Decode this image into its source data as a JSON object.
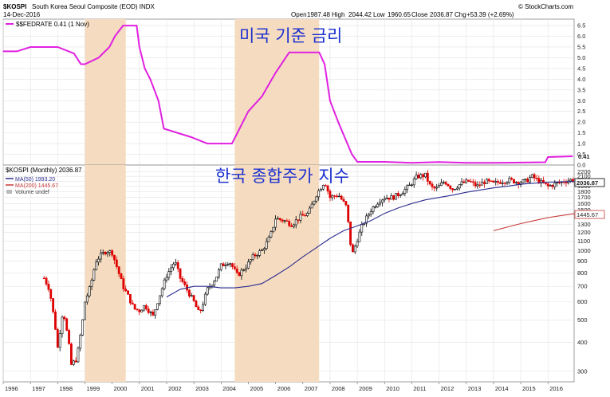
{
  "header": {
    "symbol": "$KOSPI",
    "name": "South Korea Seoul Composite (EOD) INDX",
    "date": "14-Dec-2016",
    "open_label": "Open",
    "open": "1987.48",
    "high_label": "High",
    "high": "2044.42",
    "low_label": "Low",
    "low": "1960.65",
    "close_label": "Close",
    "close": "2036.87",
    "chg_label": "Chg",
    "chg": "+53.39 (+2.69%)",
    "watermark": "© StockCharts.com"
  },
  "colors": {
    "fed_line": "#e020e0",
    "candle_up": "#000000",
    "candle_down": "#dd0000",
    "ma50": "#2b2b8f",
    "ma200": "#c83a3a",
    "shade": "#f5dcc0",
    "annotation": "#1a2fd0",
    "grid": "#e3e3e3"
  },
  "top_panel": {
    "legend": "$$FEDRATE 0.41 (1 Nov)",
    "annotation": "미국 기준 금리",
    "last_value_label": "0.41",
    "y_ticks": [
      "0.0",
      "0.5",
      "1.0",
      "1.5",
      "2.0",
      "2.5",
      "3.0",
      "3.5",
      "4.0",
      "4.5",
      "5.0",
      "5.5",
      "6.0",
      "6.5"
    ]
  },
  "bottom_panel": {
    "legend_1": "$KOSPI (Monthly) 2036.87",
    "legend_2": "MA(50) 1993.20",
    "legend_3": "MA(200) 1445.67",
    "legend_4": "Volume undef",
    "annotation": "한국 종합주가 지수",
    "last_value_label": "2036.87",
    "ma200_label": "1445.67",
    "y_ticks": [
      "300",
      "400",
      "500",
      "600",
      "700",
      "800",
      "900",
      "1000",
      "1100",
      "1200",
      "1300",
      "1400",
      "1500",
      "1600",
      "1700",
      "1800",
      "1900",
      "2000",
      "2100",
      "2200"
    ]
  },
  "x_labels": [
    "1996",
    "1997",
    "1998",
    "1999",
    "2000",
    "2001",
    "2002",
    "2003",
    "2004",
    "2005",
    "2006",
    "2007",
    "2008",
    "2009",
    "2010",
    "2011",
    "2012",
    "2013",
    "2014",
    "2015",
    "2016"
  ],
  "chart_data": [
    {
      "type": "line",
      "title": "$$FEDRATE 0.41 (1 Nov)",
      "series": [
        {
          "name": "$$FEDRATE",
          "x": [
            1996.0,
            1996.5,
            1997.0,
            1997.5,
            1998.0,
            1998.6,
            1998.85,
            1999.0,
            1999.5,
            1999.9,
            2000.1,
            2000.4,
            2000.9,
            2001.0,
            2001.2,
            2001.4,
            2001.7,
            2001.9,
            2002.9,
            2003.5,
            2004.4,
            2004.6,
            2005.0,
            2005.5,
            2006.0,
            2006.5,
            2007.6,
            2007.8,
            2008.0,
            2008.3,
            2008.8,
            2009.0,
            2010.0,
            2011.0,
            2012.0,
            2013.0,
            2014.0,
            2015.9,
            2016.0,
            2016.9
          ],
          "y": [
            5.3,
            5.3,
            5.5,
            5.5,
            5.5,
            5.2,
            4.7,
            4.7,
            5.0,
            5.5,
            6.0,
            6.5,
            6.5,
            5.5,
            4.5,
            4.0,
            3.0,
            1.7,
            1.3,
            1.0,
            1.0,
            1.5,
            2.5,
            3.2,
            4.3,
            5.25,
            5.25,
            4.7,
            3.0,
            2.0,
            0.5,
            0.15,
            0.15,
            0.1,
            0.14,
            0.1,
            0.1,
            0.13,
            0.37,
            0.41
          ]
        }
      ],
      "ylim": [
        0,
        6.8
      ],
      "shaded_periods": [
        [
          1999.0,
          2000.5
        ],
        [
          2004.5,
          2007.6
        ]
      ]
    },
    {
      "type": "line",
      "title": "$KOSPI (Monthly) 2036.87",
      "y_scale": "log",
      "ylim": [
        270,
        2350
      ],
      "series": [
        {
          "name": "$KOSPI (Monthly) 2036.87",
          "x": [
            1997.5,
            1997.7,
            1997.9,
            1998.0,
            1998.2,
            1998.4,
            1998.5,
            1998.7,
            1998.9,
            1999.0,
            1999.2,
            1999.4,
            1999.6,
            1999.8,
            2000.0,
            2000.2,
            2000.4,
            2000.6,
            2000.8,
            2001.0,
            2001.2,
            2001.5,
            2001.7,
            2002.0,
            2002.3,
            2002.5,
            2002.8,
            2003.0,
            2003.2,
            2003.5,
            2003.8,
            2004.0,
            2004.3,
            2004.6,
            2004.9,
            2005.2,
            2005.5,
            2005.8,
            2006.0,
            2006.3,
            2006.6,
            2006.9,
            2007.2,
            2007.5,
            2007.8,
            2008.0,
            2008.3,
            2008.6,
            2008.8,
            2009.0,
            2009.2,
            2009.5,
            2009.8,
            2010.0,
            2010.3,
            2010.6,
            2010.9,
            2011.2,
            2011.5,
            2011.7,
            2011.9,
            2012.2,
            2012.5,
            2012.8,
            2013.1,
            2013.4,
            2013.7,
            2014.0,
            2014.3,
            2014.6,
            2014.9,
            2015.2,
            2015.4,
            2015.7,
            2016.0,
            2016.3,
            2016.6,
            2016.96
          ],
          "y": [
            760,
            680,
            480,
            380,
            560,
            400,
            320,
            340,
            480,
            600,
            700,
            900,
            960,
            1000,
            980,
            830,
            700,
            630,
            560,
            550,
            580,
            520,
            620,
            780,
            900,
            760,
            660,
            600,
            530,
            680,
            760,
            860,
            900,
            780,
            850,
            950,
            1000,
            1150,
            1380,
            1350,
            1300,
            1400,
            1450,
            1750,
            2000,
            1700,
            1750,
            1550,
            950,
            1120,
            1300,
            1500,
            1650,
            1700,
            1700,
            1780,
            1900,
            2100,
            2120,
            1880,
            1850,
            2000,
            1850,
            1950,
            2000,
            1900,
            2000,
            1950,
            2000,
            2020,
            1980,
            2000,
            2100,
            1990,
            1900,
            1950,
            2000,
            2036.87
          ]
        },
        {
          "name": "MA(50) 1993.20",
          "x": [
            2002.0,
            2002.5,
            2003.0,
            2003.5,
            2004.0,
            2004.5,
            2005.0,
            2005.5,
            2006.0,
            2006.5,
            2007.0,
            2007.5,
            2008.0,
            2008.5,
            2009.0,
            2009.5,
            2010.0,
            2010.5,
            2011.0,
            2011.5,
            2012.0,
            2012.5,
            2013.0,
            2013.5,
            2014.0,
            2014.5,
            2015.0,
            2015.5,
            2016.0,
            2016.96
          ],
          "y": [
            630,
            680,
            700,
            700,
            690,
            690,
            700,
            720,
            780,
            850,
            940,
            1030,
            1130,
            1220,
            1280,
            1350,
            1450,
            1530,
            1600,
            1660,
            1700,
            1740,
            1790,
            1830,
            1870,
            1900,
            1940,
            1960,
            1980,
            1993.2
          ]
        },
        {
          "name": "MA(200) 1445.67",
          "x": [
            2014.0,
            2014.5,
            2015.0,
            2015.5,
            2016.0,
            2016.5,
            2016.96
          ],
          "y": [
            1220,
            1265,
            1310,
            1350,
            1390,
            1420,
            1445.67
          ]
        }
      ]
    }
  ]
}
